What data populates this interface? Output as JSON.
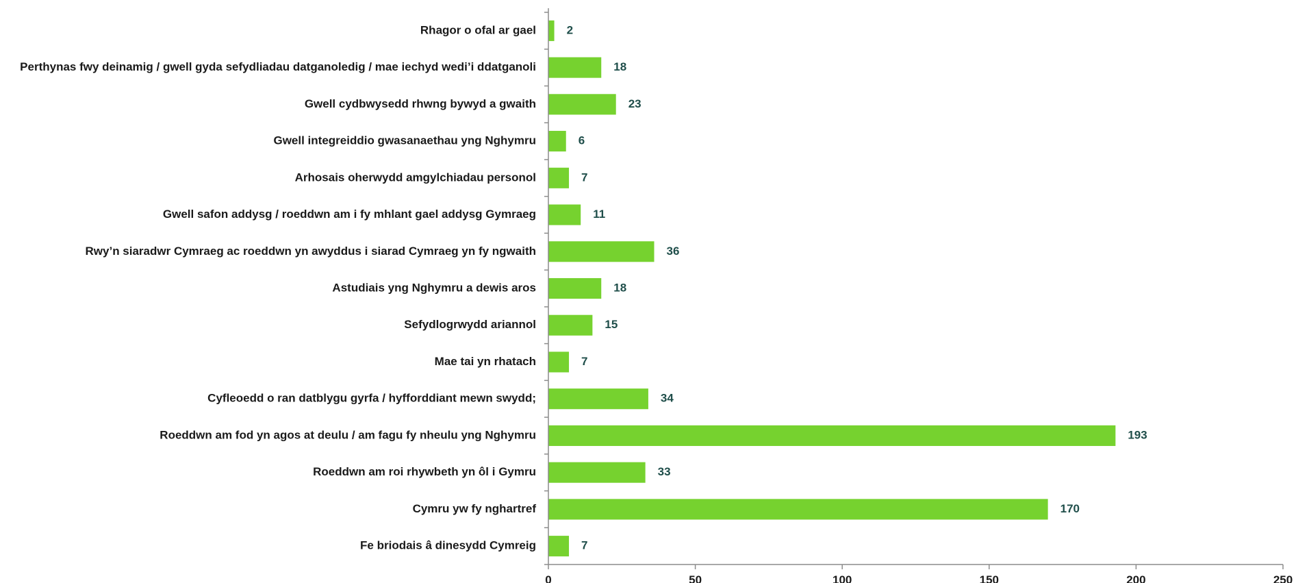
{
  "colors": {
    "bar": "#76d22f",
    "value_label": "#1f4e4a",
    "text": "#1a1a1a",
    "axis": "#8c8c8c"
  },
  "chart_data": {
    "type": "bar",
    "orientation": "horizontal",
    "categories": [
      "Rhagor o ofal ar gael",
      "Perthynas fwy deinamig / gwell gyda sefydliadau datganoledig / mae iechyd wedi’i ddatganoli",
      "Gwell cydbwysedd rhwng bywyd a gwaith",
      "Gwell integreiddio gwasanaethau yng Nghymru",
      "Arhosais oherwydd amgylchiadau personol",
      "Gwell safon addysg / roeddwn am i fy mhlant gael addysg Gymraeg",
      "Rwy’n siaradwr Cymraeg ac roeddwn yn awyddus i siarad Cymraeg yn fy ngwaith",
      "Astudiais yng Nghymru a dewis aros",
      "Sefydlogrwydd ariannol",
      "Mae tai yn rhatach",
      "Cyfleoedd o ran datblygu gyrfa / hyfforddiant mewn swydd;",
      "Roeddwn am fod yn agos at deulu / am fagu fy nheulu yng Nghymru",
      "Roeddwn am roi rhywbeth yn ôl i Gymru",
      "Cymru yw fy nghartref",
      "Fe briodais â dinesydd Cymreig"
    ],
    "values": [
      2,
      18,
      23,
      6,
      7,
      11,
      36,
      18,
      15,
      7,
      34,
      193,
      33,
      170,
      7
    ],
    "xlim": [
      0,
      250
    ],
    "xticks": [
      0,
      50,
      100,
      150,
      200,
      250
    ],
    "title": "",
    "xlabel": "",
    "ylabel": "",
    "grid": false,
    "legend": "none"
  }
}
